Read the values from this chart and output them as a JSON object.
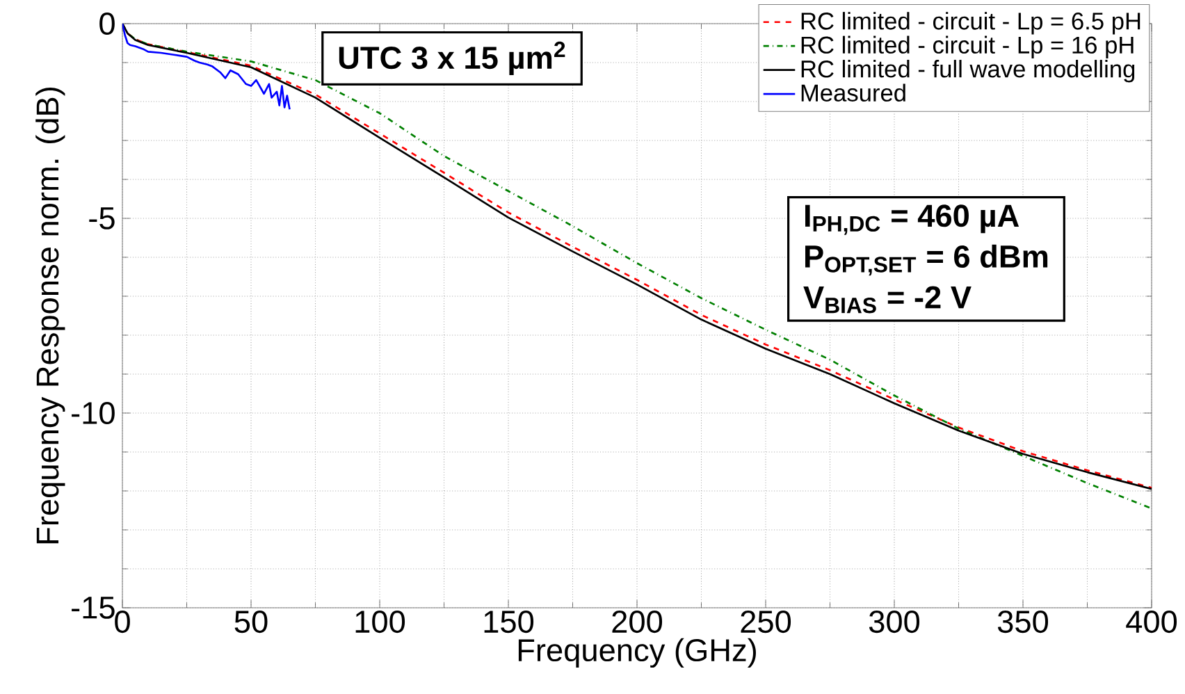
{
  "chart_data": {
    "type": "line",
    "xlabel": "Frequency (GHz)",
    "ylabel": "Frequency Response norm. (dB)",
    "xlim": [
      0,
      400
    ],
    "ylim": [
      -15,
      0
    ],
    "xticks": [
      0,
      50,
      100,
      150,
      200,
      250,
      300,
      350,
      400
    ],
    "yticks": [
      -15,
      -10,
      -5,
      0
    ],
    "grid": true,
    "legend": "top right",
    "marker": "none",
    "annotations": [
      "UTC 3 x 15 µm$^{2}$",
      "I$_{PH,DC}$ = 460 µA",
      "P$_{OPT,SET}$ = 6 dBm",
      "V$_{BIAS}$ = -2 V"
    ],
    "series": [
      {
        "name": "RC limited - circuit -  Lp = 6.5 pH",
        "color": "#ff0000",
        "line_style": "dashed",
        "x": [
          0,
          2,
          5,
          10,
          25,
          50,
          75,
          100,
          125,
          150,
          175,
          200,
          225,
          250,
          275,
          300,
          325,
          350,
          375,
          400
        ],
        "values": [
          0,
          -0.25,
          -0.4,
          -0.53,
          -0.73,
          -1.08,
          -1.82,
          -2.82,
          -3.83,
          -4.85,
          -5.73,
          -6.58,
          -7.48,
          -8.24,
          -8.9,
          -9.65,
          -10.37,
          -10.98,
          -11.47,
          -11.92
        ]
      },
      {
        "name": "RC limited - circuit -  Lp = 16 pH",
        "color": "#008000",
        "line_style": "dashdot",
        "x": [
          0,
          2,
          5,
          10,
          25,
          50,
          75,
          100,
          125,
          150,
          175,
          200,
          225,
          250,
          275,
          300,
          325,
          350,
          375,
          400
        ],
        "values": [
          0,
          -0.25,
          -0.4,
          -0.53,
          -0.72,
          -0.97,
          -1.45,
          -2.3,
          -3.4,
          -4.3,
          -5.2,
          -6.15,
          -7.05,
          -7.86,
          -8.63,
          -9.55,
          -10.4,
          -11.1,
          -11.8,
          -12.45
        ]
      },
      {
        "name": "RC limited - full wave modelling",
        "color": "#000000",
        "line_style": "solid",
        "x": [
          0,
          2,
          5,
          10,
          25,
          50,
          75,
          100,
          125,
          150,
          175,
          200,
          225,
          250,
          275,
          300,
          325,
          350,
          375,
          400
        ],
        "values": [
          0,
          -0.25,
          -0.42,
          -0.55,
          -0.75,
          -1.12,
          -1.9,
          -2.93,
          -3.95,
          -4.98,
          -5.85,
          -6.7,
          -7.6,
          -8.35,
          -9.0,
          -9.75,
          -10.45,
          -11.05,
          -11.52,
          -11.95
        ]
      },
      {
        "name": "Measured",
        "color": "#0000ff",
        "line_style": "solid",
        "x": [
          0,
          1,
          2,
          3,
          5,
          8,
          10,
          15,
          20,
          25,
          28,
          30,
          33,
          35,
          38,
          40,
          42,
          45,
          48,
          50,
          52,
          55,
          57,
          58,
          60,
          61,
          62,
          63,
          64,
          65
        ],
        "values": [
          0,
          -0.3,
          -0.5,
          -0.55,
          -0.58,
          -0.65,
          -0.72,
          -0.75,
          -0.8,
          -0.85,
          -0.95,
          -1.0,
          -1.05,
          -1.1,
          -1.25,
          -1.4,
          -1.2,
          -1.3,
          -1.55,
          -1.6,
          -1.45,
          -1.8,
          -1.55,
          -1.9,
          -1.75,
          -2.1,
          -1.6,
          -2.15,
          -1.85,
          -2.2
        ]
      }
    ]
  }
}
